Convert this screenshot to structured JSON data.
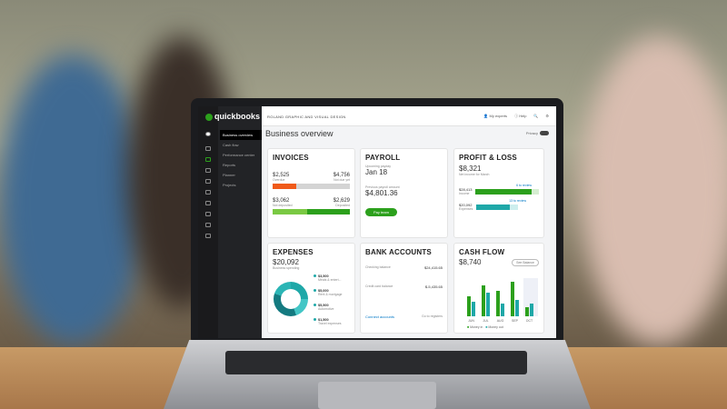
{
  "app": {
    "logo_top": "intuit",
    "logo": "quickbooks",
    "company": "ROLAND GRAPHIC AND VISUAL DESIGN",
    "page_title": "Business overview",
    "tools": [
      "My experts",
      "Help"
    ],
    "privacy": "Privacy"
  },
  "sidebar": {
    "items": [
      "Business overview",
      "Cash flow",
      "Performance center",
      "Reports",
      "Planner",
      "Projects"
    ]
  },
  "invoices": {
    "title": "INVOICES",
    "overdue": "$2,525",
    "overdue_label": "Overdue",
    "not_due": "$4,756",
    "not_due_label": "Not due yet",
    "not_deposited": "$3,062",
    "not_deposited_label": "Not deposited",
    "deposited": "$2,629",
    "deposited_label": "Deposited"
  },
  "payroll": {
    "title": "PAYROLL",
    "upcoming_label": "Upcoming payday",
    "upcoming": "Jan 18",
    "previous_label": "Previous payroll amount",
    "previous": "$4,801.36",
    "button": "Pay team"
  },
  "profit_loss": {
    "title": "PROFIT & LOSS",
    "net": "$8,321",
    "net_label": "Net income for March",
    "income": "$28,413",
    "income_label": "Income",
    "income_review": "6 to review",
    "expenses": "$20,092",
    "expenses_label": "Expenses",
    "expenses_review": "13 to review",
    "income_fill": 0.88,
    "expenses_fill": 0.8
  },
  "expenses": {
    "title": "EXPENSES",
    "total": "$20,092",
    "total_label": "Business spending",
    "items": [
      {
        "amount": "$3,500",
        "label": "Meals & entert..."
      },
      {
        "amount": "$5,000",
        "label": "Rent & mortgage"
      },
      {
        "amount": "$5,500",
        "label": "Automotive"
      },
      {
        "amount": "$1,500",
        "label": "Travel expenses"
      }
    ]
  },
  "bank": {
    "title": "BANK ACCOUNTS",
    "checking_label": "Checking balance",
    "checking": "$24,415.65",
    "credit_label": "Credit card balance",
    "credit": "$-5,435.65",
    "connect": "Connect accounts",
    "register": "Go to registers"
  },
  "cash_flow": {
    "title": "CASH FLOW",
    "amount": "$8,740",
    "button": "See Balance",
    "months": [
      "JUN",
      "JUL",
      "AUG",
      "SEP",
      "OCT"
    ],
    "money_in": [
      11,
      17,
      14,
      19,
      5
    ],
    "money_out": [
      8,
      13,
      7,
      9,
      7
    ],
    "legend": [
      "Money in",
      "Money out"
    ]
  },
  "colors": {
    "green": "#2ca01c",
    "teal": "#1fa8a8",
    "orange": "#f05a1a"
  }
}
